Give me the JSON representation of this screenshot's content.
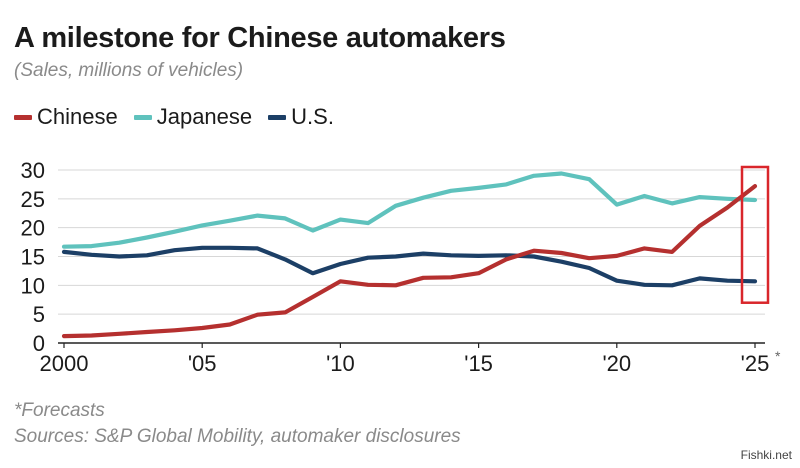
{
  "title": "A milestone for Chinese automakers",
  "subtitle": "(Sales, millions of vehicles)",
  "footnote": "*Forecasts",
  "source": "Sources: S&P Global Mobility, automaker disclosures",
  "watermark": "Fishki.net",
  "colors": {
    "chinese": "#b5302f",
    "japanese": "#5fc2bd",
    "us": "#1c3f66",
    "highlight": "#d9262b",
    "grid": "#d7d7d7"
  },
  "chart_data": {
    "type": "line",
    "title": "A milestone for Chinese automakers",
    "subtitle": "(Sales, millions of vehicles)",
    "xlabel": "",
    "ylabel": "",
    "x": [
      2000,
      2001,
      2002,
      2003,
      2004,
      2005,
      2006,
      2007,
      2008,
      2009,
      2010,
      2011,
      2012,
      2013,
      2014,
      2015,
      2016,
      2017,
      2018,
      2019,
      2020,
      2021,
      2022,
      2023,
      2024,
      2025
    ],
    "xlim": [
      2000,
      2025
    ],
    "ylim": [
      0,
      30
    ],
    "y_ticks": [
      0,
      5,
      10,
      15,
      20,
      25,
      30
    ],
    "x_tick_labels": [
      {
        "x": 2000,
        "label": "2000"
      },
      {
        "x": 2005,
        "label": "'05"
      },
      {
        "x": 2010,
        "label": "'10"
      },
      {
        "x": 2015,
        "label": "'15"
      },
      {
        "x": 2020,
        "label": "'20"
      },
      {
        "x": 2025,
        "label": "'25",
        "suffix": "*"
      }
    ],
    "grid": "horizontal",
    "legend": "top-left",
    "highlight_x": 2025,
    "series": [
      {
        "name": "Chinese",
        "color": "#b5302f",
        "values": [
          1.2,
          1.3,
          1.6,
          1.9,
          2.2,
          2.6,
          3.2,
          4.9,
          5.3,
          8.0,
          10.7,
          10.1,
          10.0,
          11.3,
          11.4,
          12.1,
          14.5,
          16.0,
          15.6,
          14.7,
          15.1,
          16.4,
          15.8,
          20.3,
          23.5,
          27.2
        ]
      },
      {
        "name": "Japanese",
        "color": "#5fc2bd",
        "values": [
          16.7,
          16.8,
          17.4,
          18.3,
          19.3,
          20.4,
          21.2,
          22.1,
          21.6,
          19.5,
          21.4,
          20.8,
          23.8,
          25.2,
          26.4,
          26.9,
          27.5,
          29.0,
          29.4,
          28.4,
          24.0,
          25.5,
          24.2,
          25.3,
          25.0,
          24.8
        ]
      },
      {
        "name": "U.S.",
        "color": "#1c3f66",
        "values": [
          15.8,
          15.3,
          15.0,
          15.2,
          16.1,
          16.5,
          16.5,
          16.4,
          14.5,
          12.1,
          13.7,
          14.8,
          15.0,
          15.5,
          15.2,
          15.1,
          15.2,
          15.0,
          14.1,
          13.0,
          10.8,
          10.1,
          10.0,
          11.2,
          10.8,
          10.7
        ]
      }
    ]
  }
}
